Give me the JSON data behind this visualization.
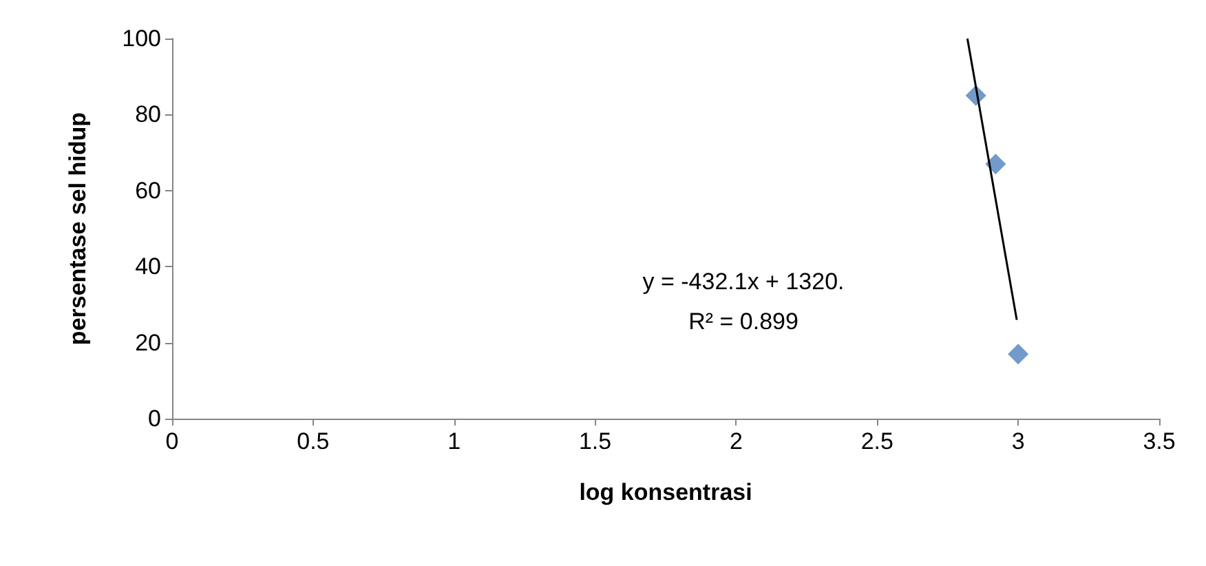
{
  "chart_data": {
    "type": "scatter",
    "xlabel": "log konsentrasi",
    "ylabel": "persentase sel hidup",
    "xlim": [
      0,
      3.5
    ],
    "xticks": [
      0,
      0.5,
      1,
      1.5,
      2,
      2.5,
      3,
      3.5
    ],
    "ylim": [
      0,
      100
    ],
    "yticks": [
      0,
      20,
      40,
      60,
      80,
      100
    ],
    "grid": false,
    "marker": "diamond",
    "series": [
      {
        "color": "#4f81bd",
        "x": [
          2.85,
          2.92,
          3.0
        ],
        "values": [
          85,
          67,
          17
        ]
      },
      {
        "type": "line",
        "color": "#000000",
        "marker": "none",
        "line_style": "solid",
        "x": [
          2.82,
          2.995
        ],
        "values": [
          100,
          26
        ]
      }
    ],
    "annotations": [
      "y = -432.1x + 1320.",
      "R² = 0.899"
    ]
  }
}
